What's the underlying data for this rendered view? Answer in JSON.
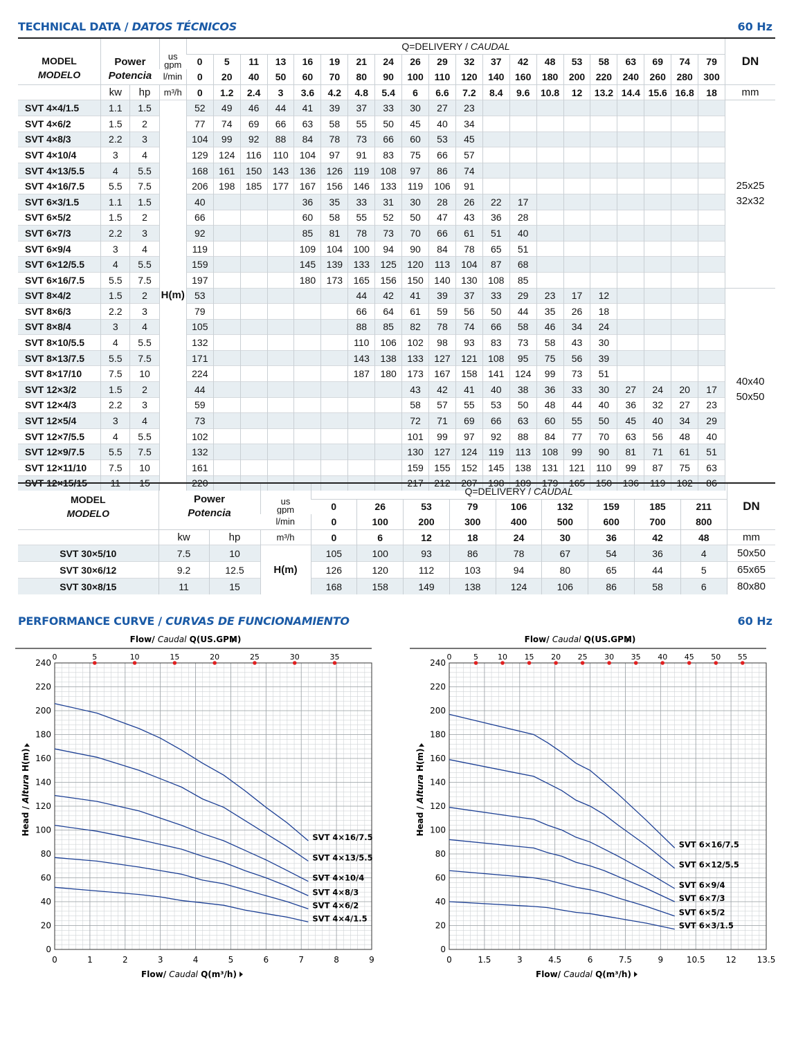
{
  "header": {
    "title_en": "TECHNICAL DATA / ",
    "title_es": "DATOS TÉCNICOS",
    "hz": "60 Hz"
  },
  "table1": {
    "model_en": "MODEL",
    "model_es": "MODELO",
    "power_en": "Power",
    "power_es": "Potencia",
    "us": "us",
    "gpm": "gpm",
    "lmin": "l/min",
    "m3h": "m³/h",
    "kw": "kw",
    "hp": "hp",
    "delivery_en": "Q=DELIVERY / ",
    "delivery_es": "CAUDAL",
    "dn": "DN",
    "mm": "mm",
    "hm": "H(m)",
    "gpm_vals": [
      "0",
      "5",
      "11",
      "13",
      "16",
      "19",
      "21",
      "24",
      "26",
      "29",
      "32",
      "37",
      "42",
      "48",
      "53",
      "58",
      "63",
      "69",
      "74",
      "79"
    ],
    "lmin_vals": [
      "0",
      "20",
      "40",
      "50",
      "60",
      "70",
      "80",
      "90",
      "100",
      "110",
      "120",
      "140",
      "160",
      "180",
      "200",
      "220",
      "240",
      "260",
      "280",
      "300"
    ],
    "m3h_vals": [
      "0",
      "1.2",
      "2.4",
      "3",
      "3.6",
      "4.2",
      "4.8",
      "5.4",
      "6",
      "6.6",
      "7.2",
      "8.4",
      "9.6",
      "10.8",
      "12",
      "13.2",
      "14.4",
      "15.6",
      "16.8",
      "18"
    ],
    "dn_groups": [
      {
        "rows": 12,
        "lines": [
          "25x25",
          "32x32"
        ]
      },
      {
        "rows": 13,
        "lines": [
          "40x40",
          "50x50"
        ]
      }
    ],
    "rows": [
      {
        "m": "SVT 4×4/1.5",
        "kw": "1.1",
        "hp": "1.5",
        "h": [
          "52",
          "49",
          "46",
          "44",
          "41",
          "39",
          "37",
          "33",
          "30",
          "27",
          "23",
          "",
          "",
          "",
          "",
          "",
          "",
          "",
          "",
          ""
        ]
      },
      {
        "m": "SVT 4×6/2",
        "kw": "1.5",
        "hp": "2",
        "h": [
          "77",
          "74",
          "69",
          "66",
          "63",
          "58",
          "55",
          "50",
          "45",
          "40",
          "34",
          "",
          "",
          "",
          "",
          "",
          "",
          "",
          "",
          ""
        ]
      },
      {
        "m": "SVT 4×8/3",
        "kw": "2.2",
        "hp": "3",
        "h": [
          "104",
          "99",
          "92",
          "88",
          "84",
          "78",
          "73",
          "66",
          "60",
          "53",
          "45",
          "",
          "",
          "",
          "",
          "",
          "",
          "",
          "",
          ""
        ]
      },
      {
        "m": "SVT 4×10/4",
        "kw": "3",
        "hp": "4",
        "h": [
          "129",
          "124",
          "116",
          "110",
          "104",
          "97",
          "91",
          "83",
          "75",
          "66",
          "57",
          "",
          "",
          "",
          "",
          "",
          "",
          "",
          "",
          ""
        ]
      },
      {
        "m": "SVT 4×13/5.5",
        "kw": "4",
        "hp": "5.5",
        "h": [
          "168",
          "161",
          "150",
          "143",
          "136",
          "126",
          "119",
          "108",
          "97",
          "86",
          "74",
          "",
          "",
          "",
          "",
          "",
          "",
          "",
          "",
          ""
        ]
      },
      {
        "m": "SVT 4×16/7.5",
        "kw": "5.5",
        "hp": "7.5",
        "h": [
          "206",
          "198",
          "185",
          "177",
          "167",
          "156",
          "146",
          "133",
          "119",
          "106",
          "91",
          "",
          "",
          "",
          "",
          "",
          "",
          "",
          "",
          ""
        ]
      },
      {
        "m": "SVT 6×3/1.5",
        "kw": "1.1",
        "hp": "1.5",
        "h": [
          "40",
          "",
          "",
          "",
          "36",
          "35",
          "33",
          "31",
          "30",
          "28",
          "26",
          "22",
          "17",
          "",
          "",
          "",
          "",
          "",
          "",
          ""
        ]
      },
      {
        "m": "SVT 6×5/2",
        "kw": "1.5",
        "hp": "2",
        "h": [
          "66",
          "",
          "",
          "",
          "60",
          "58",
          "55",
          "52",
          "50",
          "47",
          "43",
          "36",
          "28",
          "",
          "",
          "",
          "",
          "",
          "",
          ""
        ]
      },
      {
        "m": "SVT 6×7/3",
        "kw": "2.2",
        "hp": "3",
        "h": [
          "92",
          "",
          "",
          "",
          "85",
          "81",
          "78",
          "73",
          "70",
          "66",
          "61",
          "51",
          "40",
          "",
          "",
          "",
          "",
          "",
          "",
          ""
        ]
      },
      {
        "m": "SVT 6×9/4",
        "kw": "3",
        "hp": "4",
        "h": [
          "119",
          "",
          "",
          "",
          "109",
          "104",
          "100",
          "94",
          "90",
          "84",
          "78",
          "65",
          "51",
          "",
          "",
          "",
          "",
          "",
          "",
          ""
        ]
      },
      {
        "m": "SVT 6×12/5.5",
        "kw": "4",
        "hp": "5.5",
        "h": [
          "159",
          "",
          "",
          "",
          "145",
          "139",
          "133",
          "125",
          "120",
          "113",
          "104",
          "87",
          "68",
          "",
          "",
          "",
          "",
          "",
          "",
          ""
        ]
      },
      {
        "m": "SVT 6×16/7.5",
        "kw": "5.5",
        "hp": "7.5",
        "h": [
          "197",
          "",
          "",
          "",
          "180",
          "173",
          "165",
          "156",
          "150",
          "140",
          "130",
          "108",
          "85",
          "",
          "",
          "",
          "",
          "",
          "",
          ""
        ]
      },
      {
        "m": "SVT 8×4/2",
        "kw": "1.5",
        "hp": "2",
        "h": [
          "53",
          "",
          "",
          "",
          "",
          "",
          "44",
          "42",
          "41",
          "39",
          "37",
          "33",
          "29",
          "23",
          "17",
          "12",
          "",
          "",
          "",
          ""
        ]
      },
      {
        "m": "SVT 8×6/3",
        "kw": "2.2",
        "hp": "3",
        "h": [
          "79",
          "",
          "",
          "",
          "",
          "",
          "66",
          "64",
          "61",
          "59",
          "56",
          "50",
          "44",
          "35",
          "26",
          "18",
          "",
          "",
          "",
          ""
        ]
      },
      {
        "m": "SVT 8×8/4",
        "kw": "3",
        "hp": "4",
        "h": [
          "105",
          "",
          "",
          "",
          "",
          "",
          "88",
          "85",
          "82",
          "78",
          "74",
          "66",
          "58",
          "46",
          "34",
          "24",
          "",
          "",
          "",
          ""
        ]
      },
      {
        "m": "SVT 8×10/5.5",
        "kw": "4",
        "hp": "5.5",
        "h": [
          "132",
          "",
          "",
          "",
          "",
          "",
          "110",
          "106",
          "102",
          "98",
          "93",
          "83",
          "73",
          "58",
          "43",
          "30",
          "",
          "",
          "",
          ""
        ]
      },
      {
        "m": "SVT 8×13/7.5",
        "kw": "5.5",
        "hp": "7.5",
        "h": [
          "171",
          "",
          "",
          "",
          "",
          "",
          "143",
          "138",
          "133",
          "127",
          "121",
          "108",
          "95",
          "75",
          "56",
          "39",
          "",
          "",
          "",
          ""
        ]
      },
      {
        "m": "SVT 8×17/10",
        "kw": "7.5",
        "hp": "10",
        "h": [
          "224",
          "",
          "",
          "",
          "",
          "",
          "187",
          "180",
          "173",
          "167",
          "158",
          "141",
          "124",
          "99",
          "73",
          "51",
          "",
          "",
          "",
          ""
        ]
      },
      {
        "m": "SVT 12×3/2",
        "kw": "1.5",
        "hp": "2",
        "h": [
          "44",
          "",
          "",
          "",
          "",
          "",
          "",
          "",
          "43",
          "42",
          "41",
          "40",
          "38",
          "36",
          "33",
          "30",
          "27",
          "24",
          "20",
          "17"
        ]
      },
      {
        "m": "SVT 12×4/3",
        "kw": "2.2",
        "hp": "3",
        "h": [
          "59",
          "",
          "",
          "",
          "",
          "",
          "",
          "",
          "58",
          "57",
          "55",
          "53",
          "50",
          "48",
          "44",
          "40",
          "36",
          "32",
          "27",
          "23"
        ]
      },
      {
        "m": "SVT 12×5/4",
        "kw": "3",
        "hp": "4",
        "h": [
          "73",
          "",
          "",
          "",
          "",
          "",
          "",
          "",
          "72",
          "71",
          "69",
          "66",
          "63",
          "60",
          "55",
          "50",
          "45",
          "40",
          "34",
          "29"
        ]
      },
      {
        "m": "SVT 12×7/5.5",
        "kw": "4",
        "hp": "5.5",
        "h": [
          "102",
          "",
          "",
          "",
          "",
          "",
          "",
          "",
          "101",
          "99",
          "97",
          "92",
          "88",
          "84",
          "77",
          "70",
          "63",
          "56",
          "48",
          "40"
        ]
      },
      {
        "m": "SVT 12×9/7.5",
        "kw": "5.5",
        "hp": "7.5",
        "h": [
          "132",
          "",
          "",
          "",
          "",
          "",
          "",
          "",
          "130",
          "127",
          "124",
          "119",
          "113",
          "108",
          "99",
          "90",
          "81",
          "71",
          "61",
          "51"
        ]
      },
      {
        "m": "SVT 12×11/10",
        "kw": "7.5",
        "hp": "10",
        "h": [
          "161",
          "",
          "",
          "",
          "",
          "",
          "",
          "",
          "159",
          "155",
          "152",
          "145",
          "138",
          "131",
          "121",
          "110",
          "99",
          "87",
          "75",
          "63"
        ]
      },
      {
        "m": "SVT 12×15/15",
        "kw": "11",
        "hp": "15",
        "h": [
          "220",
          "",
          "",
          "",
          "",
          "",
          "",
          "",
          "217",
          "212",
          "207",
          "198",
          "189",
          "179",
          "165",
          "150",
          "136",
          "119",
          "102",
          "86"
        ]
      }
    ]
  },
  "table2": {
    "model_en": "MODEL",
    "model_es": "MODELO",
    "power_en": "Power",
    "power_es": "Potencia",
    "us": "us",
    "gpm": "gpm",
    "lmin": "l/min",
    "m3h": "m³/h",
    "kw": "kw",
    "hp": "hp",
    "delivery_en": "Q=DELIVERY / ",
    "delivery_es": "CAUDAL",
    "dn": "DN",
    "mm": "mm",
    "hm": "H(m)",
    "gpm_vals": [
      "0",
      "26",
      "53",
      "79",
      "106",
      "132",
      "159",
      "185",
      "211"
    ],
    "lmin_vals": [
      "0",
      "100",
      "200",
      "300",
      "400",
      "500",
      "600",
      "700",
      "800"
    ],
    "m3h_vals": [
      "0",
      "6",
      "12",
      "18",
      "24",
      "30",
      "36",
      "42",
      "48"
    ],
    "rows": [
      {
        "m": "SVT 30×5/10",
        "kw": "7.5",
        "hp": "10",
        "h": [
          "105",
          "100",
          "93",
          "86",
          "78",
          "67",
          "54",
          "36",
          "4"
        ],
        "dn": "50x50"
      },
      {
        "m": "SVT 30×6/12",
        "kw": "9.2",
        "hp": "12.5",
        "h": [
          "126",
          "120",
          "112",
          "103",
          "94",
          "80",
          "65",
          "44",
          "5"
        ],
        "dn": "65x65"
      },
      {
        "m": "SVT 30×8/15",
        "kw": "11",
        "hp": "15",
        "h": [
          "168",
          "158",
          "149",
          "138",
          "124",
          "106",
          "86",
          "58",
          "6"
        ],
        "dn": "80x80"
      }
    ]
  },
  "perf": {
    "title_en": "PERFORMANCE CURVE  / ",
    "title_es": "CURVAS DE FUNCIONAMIENTO",
    "hz": "60 Hz"
  },
  "chart_data": [
    {
      "type": "line",
      "top_axis_label_en": "Flow/ ",
      "top_axis_label_es": "Caudal",
      "top_axis_label_unit": " Q(US.GPM)",
      "xlabel_en": "Flow/ ",
      "xlabel_es": "Caudal",
      "xlabel_unit": " Q(m³/h)",
      "ylabel_en": "Head / ",
      "ylabel_es": "Altura",
      "ylabel_unit": " H(m)",
      "xlim": [
        0,
        9
      ],
      "ylim": [
        0,
        240
      ],
      "x_ticks": [
        "0",
        "1",
        "2",
        "3",
        "4",
        "5",
        "6",
        "7",
        "8",
        "9"
      ],
      "y_ticks": [
        "0",
        "20",
        "40",
        "60",
        "80",
        "100",
        "120",
        "140",
        "160",
        "180",
        "200",
        "220",
        "240"
      ],
      "top_ticks": [
        "0",
        "5",
        "10",
        "15",
        "20",
        "25",
        "30",
        "35"
      ],
      "top_tick_values": [
        0,
        5,
        10,
        15,
        20,
        25,
        30,
        35
      ],
      "gpm_per_m3h": 4.403,
      "x": [
        0,
        1.2,
        2.4,
        3,
        3.6,
        4.2,
        4.8,
        5.4,
        6,
        6.6,
        7.2
      ],
      "series": [
        {
          "name": "SVT 4×16/7.5",
          "values": [
            206,
            198,
            185,
            177,
            167,
            156,
            146,
            133,
            119,
            106,
            91
          ]
        },
        {
          "name": "SVT 4×13/5.5",
          "values": [
            168,
            161,
            150,
            143,
            136,
            126,
            119,
            108,
            97,
            86,
            74
          ]
        },
        {
          "name": "SVT 4×10/4",
          "values": [
            129,
            124,
            116,
            110,
            104,
            97,
            91,
            83,
            75,
            66,
            57
          ]
        },
        {
          "name": "SVT 4×8/3",
          "values": [
            104,
            99,
            92,
            88,
            84,
            78,
            73,
            66,
            60,
            53,
            45
          ]
        },
        {
          "name": "SVT 4×6/2",
          "values": [
            77,
            74,
            69,
            66,
            63,
            58,
            55,
            50,
            45,
            40,
            34
          ]
        },
        {
          "name": "SVT 4×4/1.5",
          "values": [
            52,
            49,
            46,
            44,
            41,
            39,
            37,
            33,
            30,
            27,
            23
          ]
        }
      ]
    },
    {
      "type": "line",
      "top_axis_label_en": "Flow/ ",
      "top_axis_label_es": "Caudal",
      "top_axis_label_unit": " Q(US.GPM)",
      "xlabel_en": "Flow/ ",
      "xlabel_es": "Caudal",
      "xlabel_unit": " Q(m³/h)",
      "ylabel_en": "Head / ",
      "ylabel_es": "Altura",
      "ylabel_unit": " H(m)",
      "xlim": [
        0,
        13.5
      ],
      "ylim": [
        0,
        240
      ],
      "x_ticks": [
        "0",
        "1.5",
        "3",
        "4.5",
        "6",
        "7.5",
        "9",
        "10.5",
        "12",
        "13.5"
      ],
      "y_ticks": [
        "0",
        "20",
        "40",
        "60",
        "80",
        "100",
        "120",
        "140",
        "160",
        "180",
        "200",
        "220",
        "240"
      ],
      "top_ticks": [
        "0",
        "5",
        "10",
        "15",
        "20",
        "25",
        "30",
        "35",
        "40",
        "45",
        "50",
        "55"
      ],
      "top_tick_values": [
        0,
        5,
        10,
        15,
        20,
        25,
        30,
        35,
        40,
        45,
        50,
        55
      ],
      "gpm_per_m3h": 4.403,
      "x": [
        0,
        3.6,
        4.2,
        4.8,
        5.4,
        6,
        6.6,
        7.2,
        8.4,
        9.6
      ],
      "series": [
        {
          "name": "SVT 6×16/7.5",
          "values": [
            197,
            180,
            173,
            165,
            156,
            150,
            140,
            130,
            108,
            85
          ]
        },
        {
          "name": "SVT 6×12/5.5",
          "values": [
            159,
            145,
            139,
            133,
            125,
            120,
            113,
            104,
            87,
            68
          ]
        },
        {
          "name": "SVT 6×9/4",
          "values": [
            119,
            109,
            104,
            100,
            94,
            90,
            84,
            78,
            65,
            51
          ]
        },
        {
          "name": "SVT 6×7/3",
          "values": [
            92,
            85,
            81,
            78,
            73,
            70,
            66,
            61,
            51,
            40
          ]
        },
        {
          "name": "SVT 6×5/2",
          "values": [
            66,
            60,
            58,
            55,
            52,
            50,
            47,
            43,
            36,
            28
          ]
        },
        {
          "name": "SVT 6×3/1.5",
          "values": [
            40,
            36,
            35,
            33,
            31,
            30,
            28,
            26,
            22,
            17
          ]
        }
      ]
    }
  ]
}
